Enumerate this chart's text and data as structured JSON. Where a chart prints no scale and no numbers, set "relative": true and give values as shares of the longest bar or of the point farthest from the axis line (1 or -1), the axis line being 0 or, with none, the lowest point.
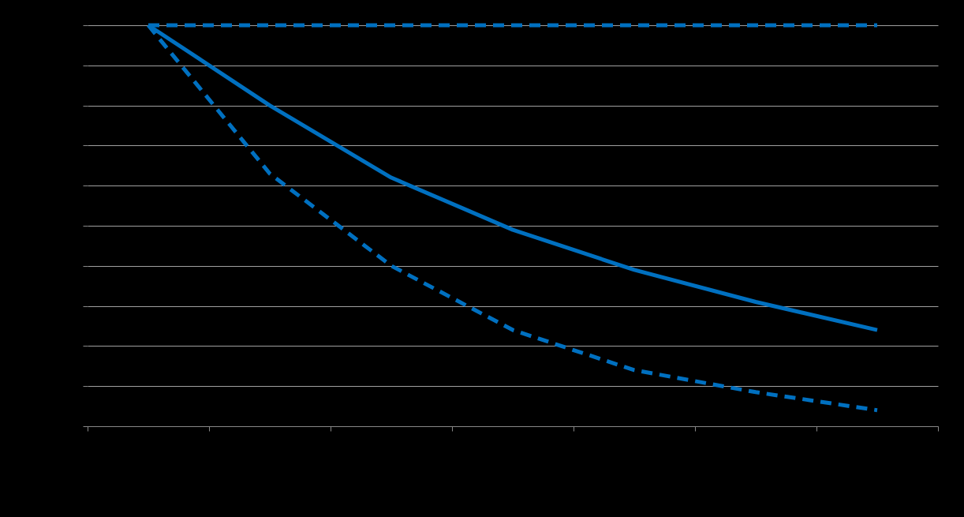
{
  "chart_data": {
    "type": "line",
    "relative": true,
    "grid": "y",
    "marker": "none",
    "categories": [
      null,
      null,
      null,
      null,
      null,
      null,
      null
    ],
    "series": [
      {
        "color": "#0070c0",
        "line_style": "dashed",
        "values": [
          1,
          1,
          1,
          1,
          1,
          1,
          1
        ]
      },
      {
        "color": "#0070c0",
        "line_style": "solid",
        "values": [
          1,
          0.8,
          0.62,
          0.49,
          0.39,
          0.31,
          0.24
        ]
      },
      {
        "color": "#0070c0",
        "line_style": "dashed",
        "values": [
          1,
          0.63,
          0.4,
          0.24,
          0.14,
          0.085,
          0.04
        ]
      }
    ]
  }
}
